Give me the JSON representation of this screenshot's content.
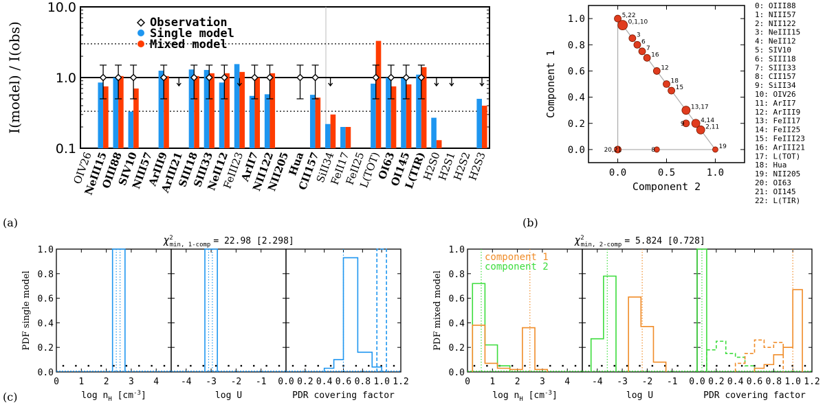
{
  "panel_labels": {
    "a": "(a)",
    "b": "(b)",
    "c": "(c)"
  },
  "colors": {
    "single": "#1e96f0",
    "mixed": "#ff3c00",
    "comp1": "#f08c28",
    "comp2": "#3cdc3c",
    "dot": "#e03c1e"
  },
  "chart_data": [
    {
      "type": "bar",
      "id": "a",
      "ylabel": "I(model) / I(obs)",
      "yscale": "log",
      "ylim": [
        0.1,
        10.0
      ],
      "yticks": [
        "0.1",
        "1.0",
        "10.0"
      ],
      "legend": {
        "observation": "Observation",
        "single": "Single model",
        "mixed": "Mixed model"
      },
      "reference_lines": [
        3.0,
        1.0,
        0.333
      ],
      "bold_categories": [
        "NeIII15",
        "OIII88",
        "SIV10",
        "NIII57",
        "ArIII9",
        "ArIII21",
        "SIII18",
        "SIII33",
        "NeII12",
        "ArII7",
        "NII122",
        "NII205",
        "Hua",
        "CII157",
        "OI63",
        "OI145",
        "L(TIR)"
      ],
      "categories": [
        "OIV26",
        "NeIII15",
        "OIII88",
        "SIV10",
        "NIII57",
        "ArIII9",
        "ArIII21",
        "SIII18",
        "SIII33",
        "NeII12",
        "FeIII23",
        "ArII7",
        "NII122",
        "NII205",
        "Hua",
        "CII157",
        "SiII34",
        "FeII17",
        "FeII25",
        "L(TOT)",
        "OI63",
        "OI145",
        "L(TIR)",
        "H2S0",
        "H2S1",
        "H2S2",
        "H2S3"
      ],
      "series": [
        {
          "name": "Single model",
          "values": [
            null,
            0.85,
            1.0,
            0.33,
            null,
            1.25,
            null,
            1.3,
            1.28,
            0.85,
            1.55,
            0.55,
            0.58,
            null,
            null,
            0.57,
            0.22,
            0.2,
            null,
            0.82,
            1.0,
            0.98,
            1.1,
            0.27,
            null,
            null,
            0.5
          ]
        },
        {
          "name": "Mixed model",
          "values": [
            null,
            0.75,
            1.05,
            0.7,
            null,
            1.05,
            null,
            1.05,
            1.15,
            1.15,
            1.2,
            1.0,
            1.15,
            null,
            null,
            0.52,
            0.3,
            0.2,
            null,
            3.3,
            0.75,
            0.8,
            1.4,
            0.13,
            null,
            null,
            0.4
          ]
        }
      ],
      "observations": [
        {
          "x": "NeIII15",
          "marker": "diamond-errorbar"
        },
        {
          "x": "OIII88",
          "marker": "diamond-errorbar"
        },
        {
          "x": "SIV10",
          "marker": "diamond-errorbar"
        },
        {
          "x": "ArIII9",
          "marker": "diamond-errorbar"
        },
        {
          "x": "ArIII21",
          "marker": "upper-limit"
        },
        {
          "x": "SIII18",
          "marker": "diamond-errorbar"
        },
        {
          "x": "SIII33",
          "marker": "diamond-errorbar"
        },
        {
          "x": "NeII12",
          "marker": "diamond-errorbar"
        },
        {
          "x": "FeIII23",
          "marker": "upper-limit"
        },
        {
          "x": "ArII7",
          "marker": "diamond-errorbar"
        },
        {
          "x": "NII122",
          "marker": "diamond-errorbar"
        },
        {
          "x": "Hua",
          "marker": "diamond-errorbar"
        },
        {
          "x": "CII157",
          "marker": "diamond-errorbar"
        },
        {
          "x": "SiII34",
          "marker": "upper-limit"
        },
        {
          "x": "L(TOT)",
          "marker": "diamond-errorbar"
        },
        {
          "x": "OI63",
          "marker": "diamond-errorbar"
        },
        {
          "x": "OI145",
          "marker": "diamond-errorbar"
        },
        {
          "x": "L(TIR)",
          "marker": "diamond-errorbar"
        },
        {
          "x": "H2S0",
          "marker": "upper-limit"
        },
        {
          "x": "H2S1",
          "marker": "upper-limit"
        },
        {
          "x": "H2S3",
          "marker": "upper-limit"
        }
      ]
    },
    {
      "type": "scatter",
      "id": "b",
      "xlabel": "Component 2",
      "ylabel": "Component 1",
      "xlim": [
        -0.3,
        1.3
      ],
      "ylim": [
        -0.1,
        1.1
      ],
      "xticks": [
        "0.0",
        "0.5",
        "1.0"
      ],
      "yticks": [
        "0.0",
        "0.2",
        "0.4",
        "0.6",
        "0.8",
        "1.0"
      ],
      "points": [
        {
          "label": "5,22",
          "x": 0.0,
          "y": 1.0,
          "r": 5
        },
        {
          "label": "0,1,10",
          "x": 0.05,
          "y": 0.95,
          "r": 7
        },
        {
          "label": "3",
          "x": 0.15,
          "y": 0.85,
          "r": 5
        },
        {
          "label": "6",
          "x": 0.2,
          "y": 0.8,
          "r": 5
        },
        {
          "label": "7",
          "x": 0.25,
          "y": 0.75,
          "r": 5
        },
        {
          "label": "16",
          "x": 0.3,
          "y": 0.7,
          "r": 5
        },
        {
          "label": "12",
          "x": 0.4,
          "y": 0.6,
          "r": 5
        },
        {
          "label": "18",
          "x": 0.5,
          "y": 0.5,
          "r": 5
        },
        {
          "label": "15",
          "x": 0.55,
          "y": 0.45,
          "r": 5
        },
        {
          "label": "13,17",
          "x": 0.7,
          "y": 0.3,
          "r": 6
        },
        {
          "label": "9",
          "x": 0.7,
          "y": 0.2,
          "r": 5
        },
        {
          "label": "4,14",
          "x": 0.8,
          "y": 0.2,
          "r": 6
        },
        {
          "label": "2,11",
          "x": 0.85,
          "y": 0.15,
          "r": 6
        },
        {
          "label": "20,21",
          "x": 0.0,
          "y": 0.0,
          "r": 5
        },
        {
          "label": "8",
          "x": 0.4,
          "y": 0.0,
          "r": 4
        },
        {
          "label": "19",
          "x": 1.0,
          "y": 0.0,
          "r": 4
        }
      ],
      "key": [
        "0: OIII88",
        "1: NIII57",
        "2: NII122",
        "3: NeIII15",
        "4: NeII12",
        "5: SIV10",
        "6: SIII18",
        "7: SIII33",
        "8: CII157",
        "9: SiII34",
        "10: OIV26",
        "11:   ArII7",
        "12: ArIII9",
        "13: FeII17",
        "14: FeII25",
        "15: FeIII23",
        "16: ArIII21",
        "17: L(TOT)",
        "18:   Hua",
        "19: NII205",
        "20: OI63",
        "21: OI145",
        "22: L(TIR)"
      ]
    },
    {
      "type": "bar",
      "id": "c-left",
      "title": "χ²min, 1-comp = 22.98 [2.298]",
      "chi_label": "χ",
      "chi_sup": "2",
      "chi_sub": "min, 1-comp",
      "chi_value": "= 22.98 [2.298]",
      "ylabel": "PDF single model",
      "ylim": [
        0.0,
        1.0
      ],
      "yticks": [
        "0.0",
        "0.2",
        "0.4",
        "0.6",
        "0.8",
        "1.0"
      ],
      "subplots": [
        {
          "xlabel": "log n",
          "xlabel_sub": "H",
          "xlabel_unit": " [cm",
          "xlabel_sup": "-3",
          "xlabel_end": "]",
          "xlim": [
            0,
            4.6
          ],
          "xticks": [
            "0",
            "1",
            "2",
            "3",
            "4"
          ],
          "series": [
            {
              "name": "single",
              "style": "solid",
              "edges": [
                2.25,
                2.75
              ],
              "heights": [
                1.0
              ]
            }
          ],
          "vlines": [
            2.4,
            2.55
          ]
        },
        {
          "xlabel": "log U",
          "xlim": [
            -4.6,
            0
          ],
          "xticks": [
            "-4",
            "-3",
            "-2",
            "-1"
          ],
          "series": [
            {
              "name": "single",
              "style": "solid",
              "edges": [
                -3.25,
                -2.75
              ],
              "heights": [
                1.0
              ]
            }
          ],
          "vlines": [
            -3.1,
            -2.95
          ]
        },
        {
          "xlabel": "PDR covering factor",
          "xlim": [
            0,
            1.2
          ],
          "xticks": [
            "0.0",
            "0.2",
            "0.4",
            "0.6",
            "0.8",
            "1.0",
            "1.2"
          ],
          "series": [
            {
              "name": "single",
              "style": "solid",
              "edges": [
                0.4,
                0.5,
                0.6,
                0.75,
                0.9,
                1.0
              ],
              "heights": [
                0.03,
                0.1,
                0.93,
                0.16,
                0.04
              ]
            },
            {
              "name": "single-dashed",
              "style": "dashed",
              "edges": [
                0.95,
                1.05
              ],
              "heights": [
                1.0
              ]
            }
          ],
          "vlines": [
            0.6
          ]
        }
      ]
    },
    {
      "type": "bar",
      "id": "c-right",
      "title": "χ²min, 2-comp = 5.824 [0.728]",
      "chi_label": "χ",
      "chi_sup": "2",
      "chi_sub": "min, 2-comp",
      "chi_value": "= 5.824 [0.728]",
      "ylabel": "PDF mixed model",
      "legend": {
        "comp1": "component 1",
        "comp2": "component 2"
      },
      "ylim": [
        0.0,
        1.0
      ],
      "yticks": [
        "0.0",
        "0.2",
        "0.4",
        "0.6",
        "0.8",
        "1.0"
      ],
      "subplots": [
        {
          "xlabel": "log n",
          "xlabel_sub": "H",
          "xlabel_unit": " [cm",
          "xlabel_sup": "-3",
          "xlabel_end": "]",
          "xlim": [
            0,
            4.6
          ],
          "xticks": [
            "0",
            "1",
            "2",
            "3",
            "4"
          ],
          "series": [
            {
              "name": "component 2",
              "style": "solid",
              "edges": [
                0.2,
                0.7,
                1.2,
                1.7
              ],
              "heights": [
                0.72,
                0.22,
                0.05
              ]
            },
            {
              "name": "component 1",
              "style": "solid",
              "edges": [
                0.2,
                0.7,
                1.2,
                1.7,
                2.2,
                2.7,
                3.2
              ],
              "heights": [
                0.38,
                0.07,
                0.03,
                0.02,
                0.36,
                0.02
              ]
            }
          ],
          "vlines": [
            0.55,
            2.5
          ]
        },
        {
          "xlabel": "log U",
          "xlim": [
            -4.6,
            0
          ],
          "xticks": [
            "-4",
            "-3",
            "-2",
            "-1"
          ],
          "series": [
            {
              "name": "component 2",
              "style": "solid",
              "edges": [
                -4.25,
                -3.75,
                -3.25
              ],
              "heights": [
                0.27,
                0.78
              ]
            },
            {
              "name": "component 1",
              "style": "solid",
              "edges": [
                -2.75,
                -2.25,
                -1.75,
                -1.25
              ],
              "heights": [
                0.61,
                0.37,
                0.08
              ]
            }
          ],
          "vlines": [
            -3.6,
            -2.2
          ]
        },
        {
          "xlabel": "PDR covering factor",
          "xlim": [
            0,
            1.2
          ],
          "xticks": [
            "0.0",
            "0.2",
            "0.4",
            "0.6",
            "0.8",
            "1.0",
            "1.2"
          ],
          "series": [
            {
              "name": "component 2",
              "style": "solid",
              "edges": [
                0.0,
                0.1
              ],
              "heights": [
                1.0
              ]
            },
            {
              "name": "component 2",
              "style": "dashed",
              "edges": [
                0.1,
                0.2,
                0.3,
                0.4,
                0.5,
                0.6
              ],
              "heights": [
                0.18,
                0.25,
                0.15,
                0.12,
                0.05
              ]
            },
            {
              "name": "component 1",
              "style": "dashed",
              "edges": [
                0.4,
                0.5,
                0.6,
                0.7,
                0.8,
                0.9
              ],
              "heights": [
                0.07,
                0.15,
                0.26,
                0.2,
                0.24
              ]
            },
            {
              "name": "component 1",
              "style": "solid",
              "edges": [
                0.6,
                0.7,
                0.8,
                0.9,
                1.0,
                1.1
              ],
              "heights": [
                0.03,
                0.06,
                0.14,
                0.2,
                0.67
              ]
            }
          ],
          "vlines": [
            0.05,
            1.0
          ]
        }
      ]
    }
  ]
}
